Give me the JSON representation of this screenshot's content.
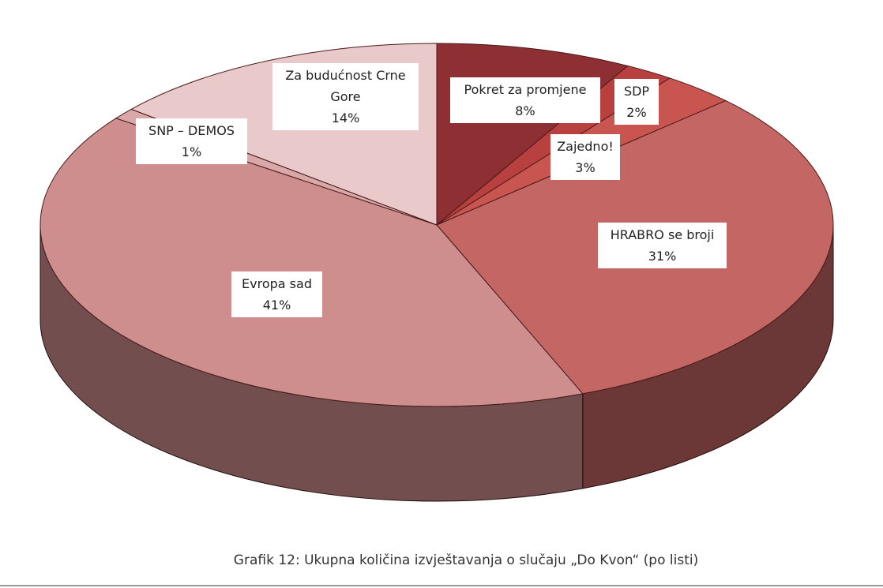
{
  "chart_data": {
    "type": "pie",
    "title": "Grafik 12: Ukupna količina izvještavanja o slučaju „Do Kvon“ (po listi)",
    "categories": [
      "Pokret za promjene",
      "SDP",
      "Zajedno!",
      "HRABRO se broji",
      "Evropa sad",
      "SNP – DEMOS",
      "Za budućnost Crne Gore"
    ],
    "values": [
      8,
      2,
      3,
      31,
      41,
      1,
      14
    ],
    "value_labels": [
      "8%",
      "2%",
      "3%",
      "31%",
      "41%",
      "1%",
      "14%"
    ],
    "colors": [
      "#8e2f33",
      "#b8403f",
      "#c95550",
      "#c46664",
      "#cf8e8e",
      "#d9a9a9",
      "#e9c9c9"
    ]
  }
}
